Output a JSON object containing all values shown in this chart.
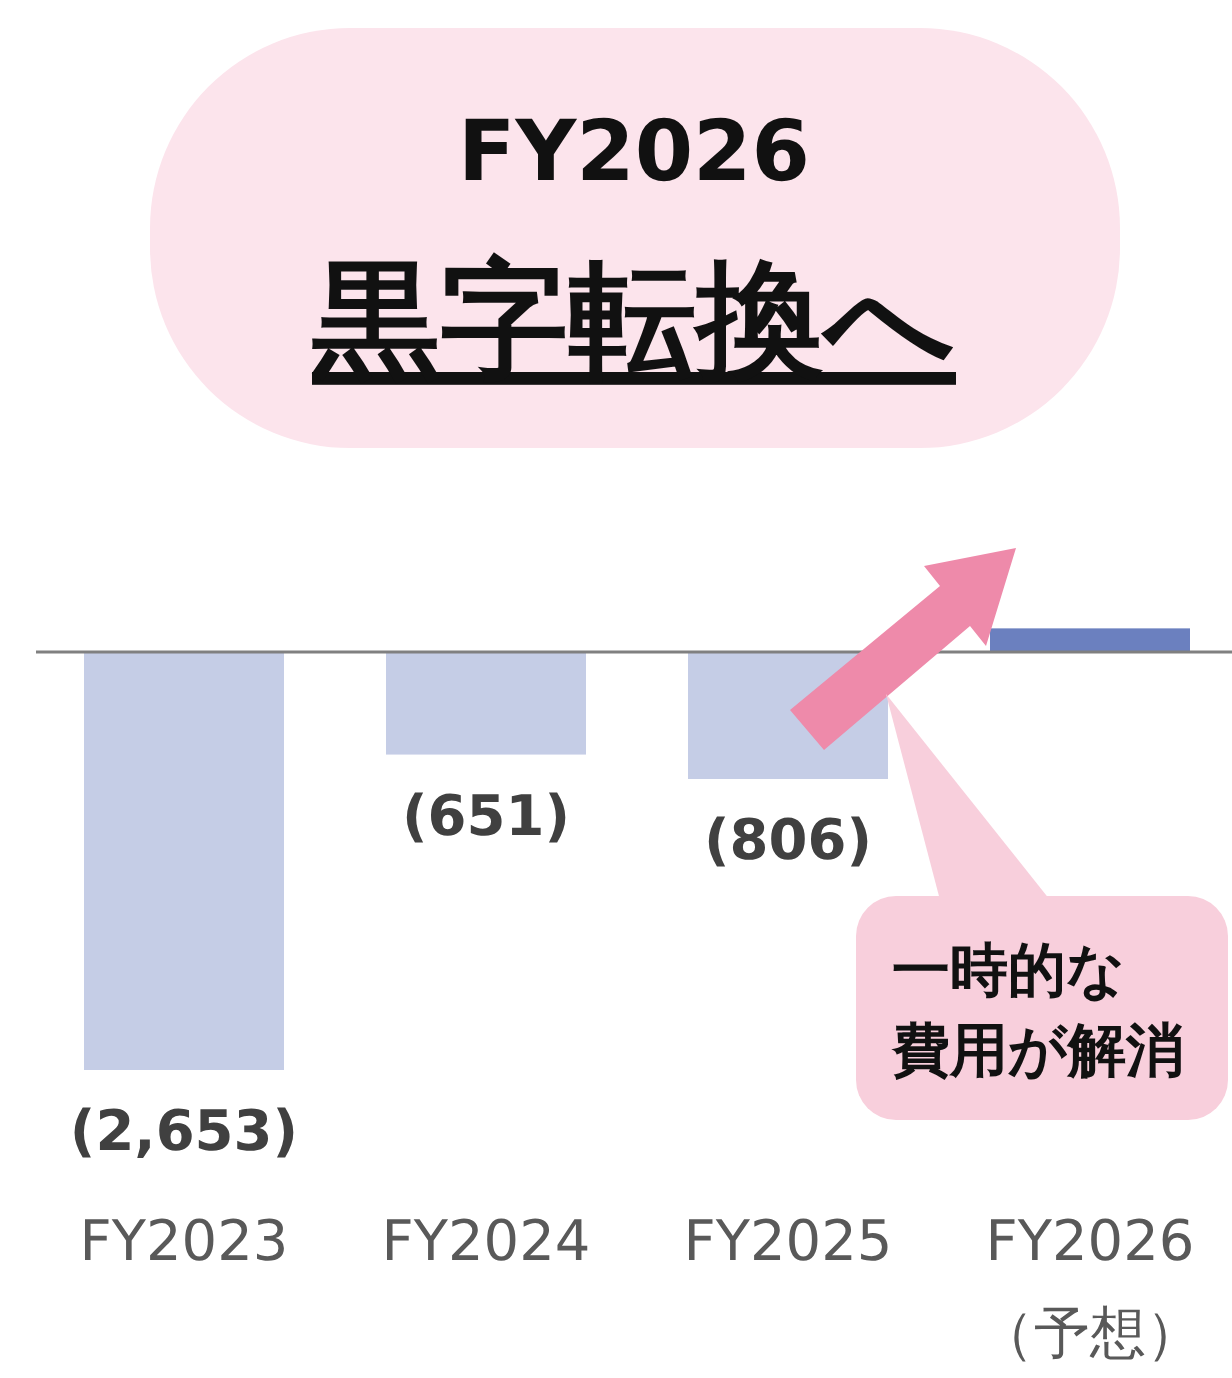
{
  "chart_data": {
    "type": "bar",
    "title": "FY2026",
    "subtitle": "黒字転換へ",
    "categories": [
      "FY2023",
      "FY2024",
      "FY2025",
      "FY2026\n（予想）"
    ],
    "values": [
      -2653,
      -651,
      -806,
      150
    ],
    "colors": [
      "#c5cde6",
      "#c5cde6",
      "#c5cde6",
      "#6b80bf"
    ],
    "value_labels": [
      "(2,653)",
      "(651)",
      "(806)",
      null
    ],
    "annotations": [
      "一時的な",
      "費用が解消"
    ]
  }
}
